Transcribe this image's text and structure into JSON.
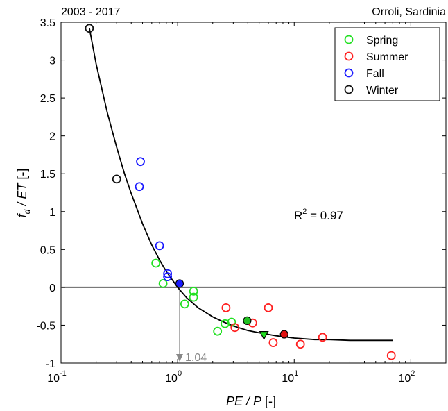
{
  "header": {
    "left_text": "2003 - 2017",
    "right_text": "Orroli, Sardinia"
  },
  "chart_data": {
    "type": "scatter",
    "x_scale": "log",
    "xlim": [
      0.1,
      200
    ],
    "ylim": [
      -1,
      3.5
    ],
    "xlabel": "PE / P  [-]",
    "ylabel": "f_d / ET  [-]",
    "x_ticks": [
      {
        "value": 0.1,
        "base": "10",
        "exp": "-1"
      },
      {
        "value": 1,
        "base": "10",
        "exp": "0"
      },
      {
        "value": 10,
        "base": "10",
        "exp": "1"
      },
      {
        "value": 100,
        "base": "10",
        "exp": "2"
      }
    ],
    "y_ticks": [
      {
        "value": -1,
        "label": "-1"
      },
      {
        "value": -0.5,
        "label": "-0.5"
      },
      {
        "value": 0,
        "label": "0"
      },
      {
        "value": 0.5,
        "label": "0.5"
      },
      {
        "value": 1,
        "label": "1"
      },
      {
        "value": 1.5,
        "label": "1.5"
      },
      {
        "value": 2,
        "label": "2"
      },
      {
        "value": 2.5,
        "label": "2.5"
      },
      {
        "value": 3,
        "label": "3"
      },
      {
        "value": 3.5,
        "label": "3.5"
      }
    ],
    "zero_line": 0,
    "series": [
      {
        "name": "Spring",
        "color": "#22e022",
        "points": [
          [
            0.65,
            0.32
          ],
          [
            0.75,
            0.05
          ],
          [
            1.15,
            -0.22
          ],
          [
            1.37,
            -0.05
          ],
          [
            1.37,
            -0.13
          ],
          [
            2.2,
            -0.58
          ],
          [
            2.55,
            -0.48
          ],
          [
            2.9,
            -0.46
          ]
        ]
      },
      {
        "name": "Summer",
        "color": "#ff2020",
        "points": [
          [
            2.6,
            -0.27
          ],
          [
            3.1,
            -0.53
          ],
          [
            4.4,
            -0.47
          ],
          [
            6.0,
            -0.27
          ],
          [
            6.6,
            -0.73
          ],
          [
            11.3,
            -0.75
          ],
          [
            17.5,
            -0.66
          ],
          [
            68,
            -0.9
          ]
        ]
      },
      {
        "name": "Fall",
        "color": "#1a1aff",
        "points": [
          [
            0.48,
            1.66
          ],
          [
            0.47,
            1.33
          ],
          [
            0.7,
            0.55
          ],
          [
            0.82,
            0.18
          ],
          [
            0.82,
            0.14
          ]
        ]
      },
      {
        "name": "Winter",
        "color": "#111111",
        "points": [
          [
            0.175,
            3.42
          ],
          [
            0.3,
            1.43
          ]
        ]
      }
    ],
    "filled_points": [
      {
        "x": 1.04,
        "y": 0.05,
        "color": "#1a1aff",
        "marker": "circle"
      },
      {
        "x": 3.95,
        "y": -0.44,
        "color": "#22c022",
        "marker": "circle"
      },
      {
        "x": 8.2,
        "y": -0.62,
        "color": "#e01010",
        "marker": "circle"
      },
      {
        "x": 5.5,
        "y": -0.63,
        "color": "#22e022",
        "marker": "triangle"
      }
    ],
    "fit_curve": {
      "x": [
        0.175,
        0.2,
        0.25,
        0.3,
        0.35,
        0.4,
        0.5,
        0.6,
        0.7,
        0.8,
        1.0,
        1.2,
        1.5,
        2.0,
        2.5,
        3.0,
        4.0,
        5.0,
        7.0,
        10,
        15,
        20,
        30,
        50,
        70
      ],
      "y": [
        3.42,
        2.95,
        2.3,
        1.85,
        1.5,
        1.24,
        0.84,
        0.56,
        0.36,
        0.21,
        0.0,
        -0.14,
        -0.27,
        -0.39,
        -0.46,
        -0.51,
        -0.57,
        -0.6,
        -0.64,
        -0.67,
        -0.69,
        -0.69,
        -0.7,
        -0.7,
        -0.7
      ]
    },
    "annotation": {
      "r2_label": "R",
      "r2_sup": "2",
      "r2_value": " = 0.97",
      "marker_x": 1.04,
      "marker_label": "1.04"
    },
    "legend": {
      "placement": "top-right",
      "entries": [
        {
          "label": "Spring",
          "color": "#22e022"
        },
        {
          "label": "Summer",
          "color": "#ff2020"
        },
        {
          "label": "Fall",
          "color": "#1a1aff"
        },
        {
          "label": "Winter",
          "color": "#111111"
        }
      ]
    }
  }
}
